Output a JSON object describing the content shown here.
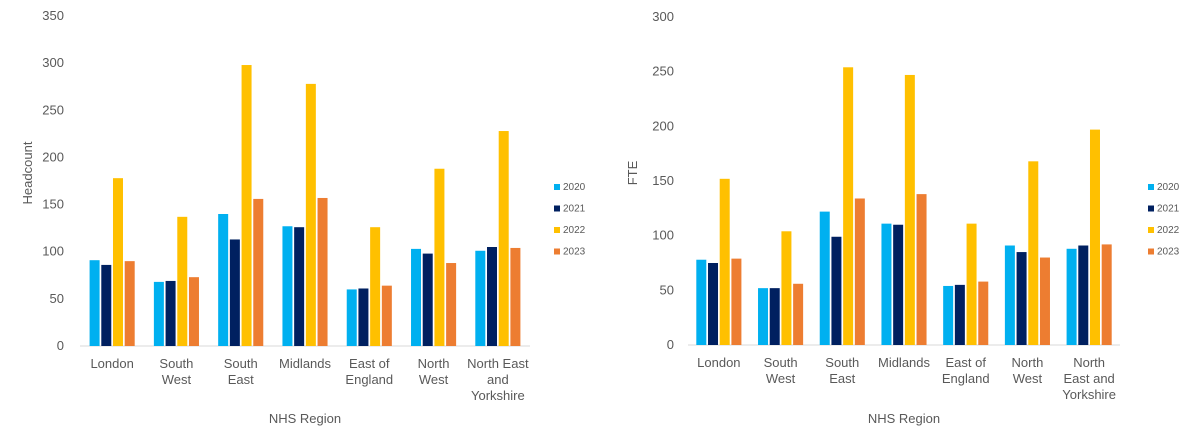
{
  "colors": {
    "2020": "#00B0F0",
    "2021": "#002060",
    "2022": "#FFC000",
    "2023": "#ED7D31",
    "axis": "#D9D9D9",
    "text": "#595959"
  },
  "chart_data": [
    {
      "type": "bar",
      "title": "",
      "xlabel": "NHS Region",
      "ylabel": "Headcount",
      "ylim": [
        0,
        350
      ],
      "yticks": [
        0,
        50,
        100,
        150,
        200,
        250,
        300,
        350
      ],
      "grid": false,
      "legend": "right",
      "categories": [
        "London",
        "South West",
        "South East",
        "Midlands",
        "East of England",
        "North West",
        "North East and Yorkshire"
      ],
      "category_lines": [
        [
          "London"
        ],
        [
          "South",
          "West"
        ],
        [
          "South",
          "East"
        ],
        [
          "Midlands"
        ],
        [
          "East of",
          "England"
        ],
        [
          "North",
          "West"
        ],
        [
          "North East",
          "and",
          "Yorkshire"
        ]
      ],
      "series": [
        {
          "name": "2020",
          "values": [
            91,
            68,
            140,
            127,
            60,
            103,
            101
          ]
        },
        {
          "name": "2021",
          "values": [
            86,
            69,
            113,
            126,
            61,
            98,
            105
          ]
        },
        {
          "name": "2022",
          "values": [
            178,
            137,
            298,
            278,
            126,
            188,
            228
          ]
        },
        {
          "name": "2023",
          "values": [
            90,
            73,
            156,
            157,
            64,
            88,
            104
          ]
        }
      ]
    },
    {
      "type": "bar",
      "title": "",
      "xlabel": "NHS Region",
      "ylabel": "FTE",
      "ylim": [
        0,
        300
      ],
      "yticks": [
        0,
        50,
        100,
        150,
        200,
        250,
        300
      ],
      "grid": false,
      "legend": "right",
      "categories": [
        "London",
        "South West",
        "South East",
        "Midlands",
        "East of England",
        "North West",
        "North East and Yorkshire"
      ],
      "category_lines": [
        [
          "London"
        ],
        [
          "South",
          "West"
        ],
        [
          "South",
          "East"
        ],
        [
          "Midlands"
        ],
        [
          "East of",
          "England"
        ],
        [
          "North",
          "West"
        ],
        [
          "North",
          "East and",
          "Yorkshire"
        ]
      ],
      "series": [
        {
          "name": "2020",
          "values": [
            78,
            52,
            122,
            111,
            54,
            91,
            88
          ]
        },
        {
          "name": "2021",
          "values": [
            75,
            52,
            99,
            110,
            55,
            85,
            91
          ]
        },
        {
          "name": "2022",
          "values": [
            152,
            104,
            254,
            247,
            111,
            168,
            197
          ]
        },
        {
          "name": "2023",
          "values": [
            79,
            56,
            134,
            138,
            58,
            80,
            92
          ]
        }
      ]
    }
  ]
}
